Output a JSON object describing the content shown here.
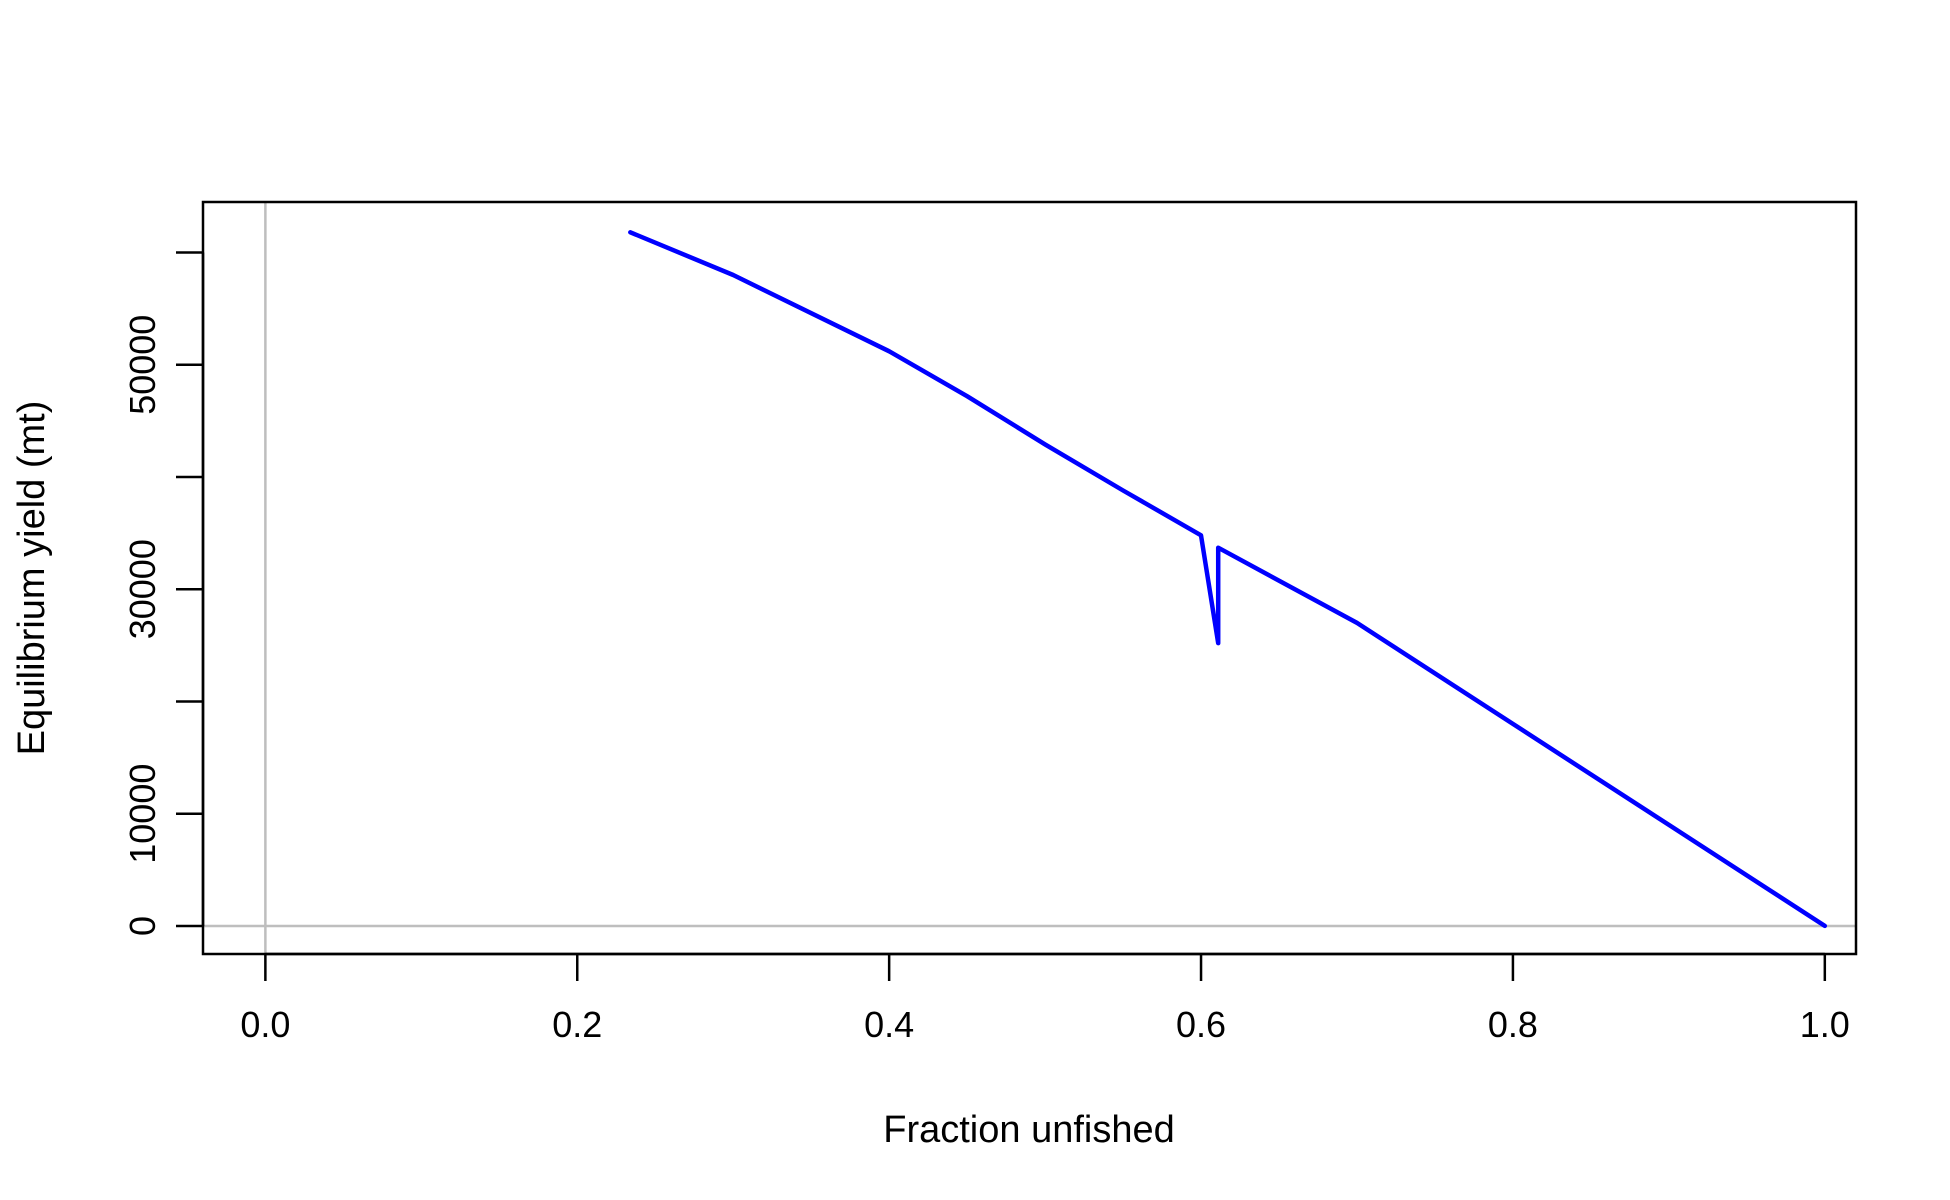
{
  "chart_data": {
    "type": "line",
    "title": "",
    "xlabel": "Fraction unfished",
    "ylabel": "Equilibrium yield (mt)",
    "xlim": [
      -0.04,
      1.02
    ],
    "ylim": [
      -2500,
      64500
    ],
    "x_ticks": [
      0.0,
      0.2,
      0.4,
      0.6,
      0.8,
      1.0
    ],
    "x_tick_labels": [
      "0.0",
      "0.2",
      "0.4",
      "0.6",
      "0.8",
      "1.0"
    ],
    "y_ticks": [
      0,
      10000,
      20000,
      30000,
      40000,
      50000,
      60000
    ],
    "y_tick_labels": [
      "0",
      "10000",
      "",
      "30000",
      "",
      "50000",
      ""
    ],
    "reference_lines": {
      "x": 0,
      "y": 0,
      "color": "#bebebe"
    },
    "grid": false,
    "legend": "none",
    "series": [
      {
        "color": "#0000ff",
        "x": [
          0.234,
          0.3,
          0.4,
          0.45,
          0.5,
          0.55,
          0.6,
          0.611,
          0.611,
          0.7,
          0.8,
          0.9,
          1.0
        ],
        "y": [
          61800,
          58000,
          51200,
          47200,
          42900,
          38800,
          34800,
          25200,
          33700,
          27000,
          18000,
          9000,
          0
        ]
      }
    ]
  }
}
